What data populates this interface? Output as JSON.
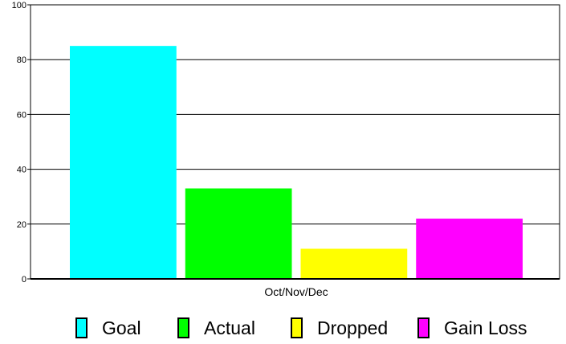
{
  "chart_data": {
    "type": "bar",
    "title": "",
    "xlabel": "",
    "ylabel": "",
    "category_label": "Oct/Nov/Dec",
    "ylim": [
      0,
      100
    ],
    "yticks": [
      0,
      20,
      40,
      60,
      80,
      100
    ],
    "grid": true,
    "legend_position": "bottom",
    "series": [
      {
        "name": "Goal",
        "value": 85,
        "color": "#00ffff"
      },
      {
        "name": "Actual",
        "value": 33,
        "color": "#00ff00"
      },
      {
        "name": "Dropped",
        "value": 11,
        "color": "#ffff00"
      },
      {
        "name": "Gain Loss",
        "value": 22,
        "color": "#ff00ff"
      }
    ]
  }
}
